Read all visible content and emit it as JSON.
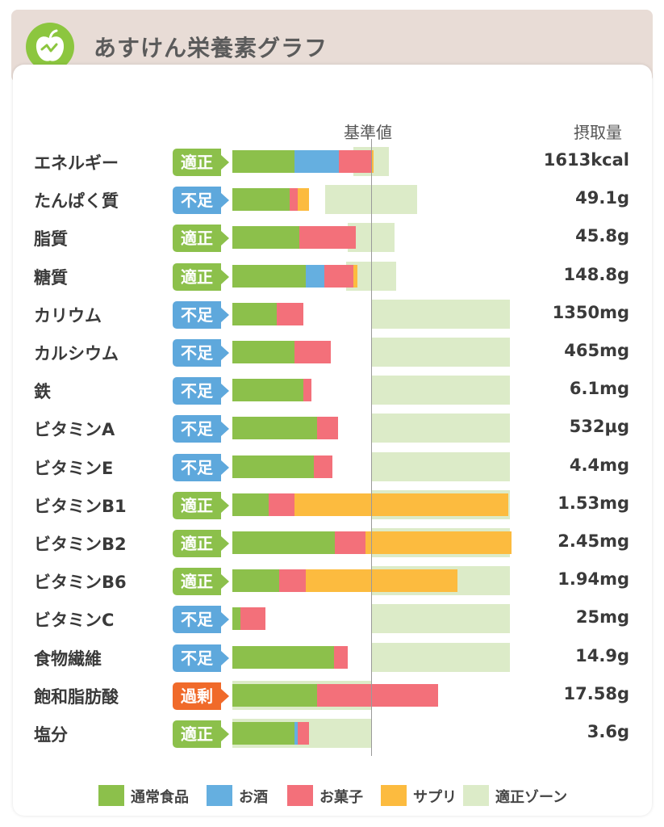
{
  "header": {
    "title": "あすけん栄養素グラフ",
    "logo_icon": "apple-chart-icon"
  },
  "colors": {
    "normal_food": "#8cc04b",
    "alcohol": "#65afe0",
    "sweets": "#f3707a",
    "supplement": "#fcbb3f",
    "zone": "#dcebc8",
    "status_ok": "#8cc04b",
    "status_low": "#5ea8dc",
    "status_over": "#f06a2a"
  },
  "chart_data": {
    "type": "bar",
    "stacked": true,
    "orientation": "horizontal",
    "column_headers": {
      "reference": "基準値",
      "intake": "摂取量"
    },
    "x_unit": "percent of reference value",
    "xlim": [
      0,
      100
    ],
    "series": [
      {
        "name": "通常食品",
        "key": "normal_food"
      },
      {
        "name": "お酒",
        "key": "alcohol"
      },
      {
        "name": "お菓子",
        "key": "sweets"
      },
      {
        "name": "サプリ",
        "key": "supplement"
      }
    ],
    "zone_label": "適正ゾーン",
    "rows": [
      {
        "name": "エネルギー",
        "status": "適正",
        "status_key": "ok",
        "intake": "1613kcal",
        "segments": [
          45,
          32,
          23,
          2
        ],
        "zone": [
          87,
          113
        ]
      },
      {
        "name": "たんぱく質",
        "status": "不足",
        "status_key": "low",
        "intake": "49.1g",
        "segments": [
          41,
          0,
          6,
          8
        ],
        "zone": [
          67,
          133
        ]
      },
      {
        "name": "脂質",
        "status": "適正",
        "status_key": "ok",
        "intake": "45.8g",
        "segments": [
          48,
          0,
          41,
          0
        ],
        "zone": [
          83,
          117
        ]
      },
      {
        "name": "糖質",
        "status": "適正",
        "status_key": "ok",
        "intake": "148.8g",
        "segments": [
          53,
          13,
          21,
          3
        ],
        "zone": [
          82,
          118
        ]
      },
      {
        "name": "カリウム",
        "status": "不足",
        "status_key": "low",
        "intake": "1350mg",
        "segments": [
          32,
          0,
          19,
          0
        ],
        "zone": [
          100,
          200
        ]
      },
      {
        "name": "カルシウム",
        "status": "不足",
        "status_key": "low",
        "intake": "465mg",
        "segments": [
          45,
          0,
          26,
          0
        ],
        "zone": [
          100,
          200
        ]
      },
      {
        "name": "鉄",
        "status": "不足",
        "status_key": "low",
        "intake": "6.1mg",
        "segments": [
          51,
          0,
          6,
          0
        ],
        "zone": [
          100,
          200
        ]
      },
      {
        "name": "ビタミンA",
        "status": "不足",
        "status_key": "low",
        "intake": "532μg",
        "segments": [
          61,
          0,
          15,
          0
        ],
        "zone": [
          100,
          200
        ]
      },
      {
        "name": "ビタミンE",
        "status": "不足",
        "status_key": "low",
        "intake": "4.4mg",
        "segments": [
          59,
          0,
          13,
          0
        ],
        "zone": [
          100,
          200
        ]
      },
      {
        "name": "ビタミンB1",
        "status": "適正",
        "status_key": "ok",
        "intake": "1.53mg",
        "segments": [
          26,
          0,
          19,
          154
        ],
        "zone": [
          100,
          200
        ]
      },
      {
        "name": "ビタミンB2",
        "status": "適正",
        "status_key": "ok",
        "intake": "2.45mg",
        "segments": [
          74,
          0,
          22,
          105
        ],
        "zone": [
          100,
          200
        ]
      },
      {
        "name": "ビタミンB6",
        "status": "適正",
        "status_key": "ok",
        "intake": "1.94mg",
        "segments": [
          34,
          0,
          19,
          109
        ],
        "zone": [
          100,
          200
        ]
      },
      {
        "name": "ビタミンC",
        "status": "不足",
        "status_key": "low",
        "intake": "25mg",
        "segments": [
          6,
          0,
          18,
          0
        ],
        "zone": [
          100,
          200
        ]
      },
      {
        "name": "食物繊維",
        "status": "不足",
        "status_key": "low",
        "intake": "14.9g",
        "segments": [
          73,
          0,
          10,
          0
        ],
        "zone": [
          100,
          200
        ]
      },
      {
        "name": "飽和脂肪酸",
        "status": "過剰",
        "status_key": "over",
        "intake": "17.58g",
        "segments": [
          61,
          0,
          87,
          0
        ],
        "zone": [
          0,
          100
        ]
      },
      {
        "name": "塩分",
        "status": "適正",
        "status_key": "ok",
        "intake": "3.6g",
        "segments": [
          45,
          2,
          8,
          0
        ],
        "zone": [
          0,
          100
        ]
      }
    ]
  }
}
